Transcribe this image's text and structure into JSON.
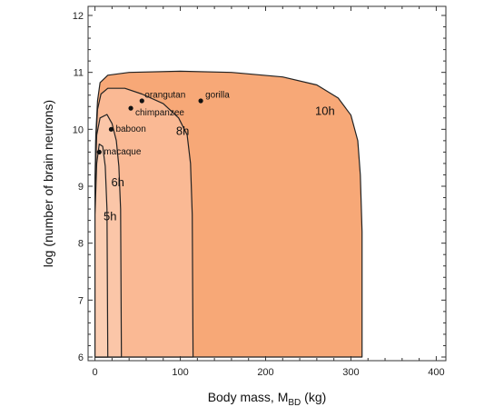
{
  "chart_data": {
    "type": "area",
    "xlabel_prefix": "Body mass, M",
    "xlabel_sub": "BD",
    "xlabel_suffix": " (kg)",
    "ylabel": "log (number of brain neurons)",
    "xlim": [
      0,
      400
    ],
    "ylim": [
      6,
      12
    ],
    "x_ticks": [
      "0",
      "100",
      "200",
      "300",
      "400"
    ],
    "y_ticks": [
      "6",
      "7",
      "8",
      "9",
      "10",
      "11",
      "12"
    ],
    "grid": false,
    "regions": [
      {
        "label": "10h",
        "color": "#F7A877",
        "boundary": [
          [
            0,
            6
          ],
          [
            0,
            9.0
          ],
          [
            1,
            9.9
          ],
          [
            3,
            10.5
          ],
          [
            6,
            10.82
          ],
          [
            15,
            10.95
          ],
          [
            40,
            11.0
          ],
          [
            100,
            11.02
          ],
          [
            160,
            11.0
          ],
          [
            220,
            10.92
          ],
          [
            260,
            10.78
          ],
          [
            285,
            10.55
          ],
          [
            300,
            10.25
          ],
          [
            308,
            9.8
          ],
          [
            311,
            9.2
          ],
          [
            313,
            8.2
          ],
          [
            313,
            6
          ]
        ],
        "label_x": 258,
        "label_y": 10.25
      },
      {
        "label": "8h",
        "color": "#FAB994",
        "boundary": [
          [
            0,
            6
          ],
          [
            0,
            9.0
          ],
          [
            1,
            9.8
          ],
          [
            3,
            10.35
          ],
          [
            7,
            10.62
          ],
          [
            15,
            10.72
          ],
          [
            35,
            10.72
          ],
          [
            55,
            10.62
          ],
          [
            80,
            10.45
          ],
          [
            98,
            10.2
          ],
          [
            108,
            9.9
          ],
          [
            112,
            9.4
          ],
          [
            114,
            8.5
          ],
          [
            115,
            6
          ]
        ],
        "label_x": 95,
        "label_y": 9.9
      },
      {
        "label": "6h",
        "color": "#FBC6A8",
        "boundary": [
          [
            0,
            6
          ],
          [
            0,
            9.0
          ],
          [
            2,
            9.9
          ],
          [
            6,
            10.2
          ],
          [
            14,
            10.26
          ],
          [
            20,
            10.1
          ],
          [
            25,
            9.8
          ],
          [
            28,
            9.35
          ],
          [
            30,
            8.6
          ],
          [
            31,
            6
          ]
        ],
        "label_x": 19,
        "label_y": 9.0
      },
      {
        "label": "5h",
        "color": "#FBCEB3",
        "boundary": [
          [
            0,
            6
          ],
          [
            0,
            8.5
          ],
          [
            2,
            9.4
          ],
          [
            5,
            9.74
          ],
          [
            9,
            9.7
          ],
          [
            12,
            9.35
          ],
          [
            14,
            8.6
          ],
          [
            15,
            6
          ]
        ],
        "label_x": 10,
        "label_y": 8.4
      }
    ],
    "points": [
      {
        "name": "orangutan",
        "x": 55,
        "y": 10.5,
        "label_dx": 3,
        "label_dy": -6
      },
      {
        "name": "gorilla",
        "x": 124,
        "y": 10.5,
        "label_dx": 5,
        "label_dy": -6
      },
      {
        "name": "chimpanzee",
        "x": 42,
        "y": 10.37,
        "label_dx": 5,
        "label_dy": 5
      },
      {
        "name": "baboon",
        "x": 19,
        "y": 10.0,
        "label_dx": 5,
        "label_dy": 0
      },
      {
        "name": "macaque",
        "x": 5,
        "y": 9.6,
        "label_dx": 5,
        "label_dy": 0
      }
    ]
  }
}
